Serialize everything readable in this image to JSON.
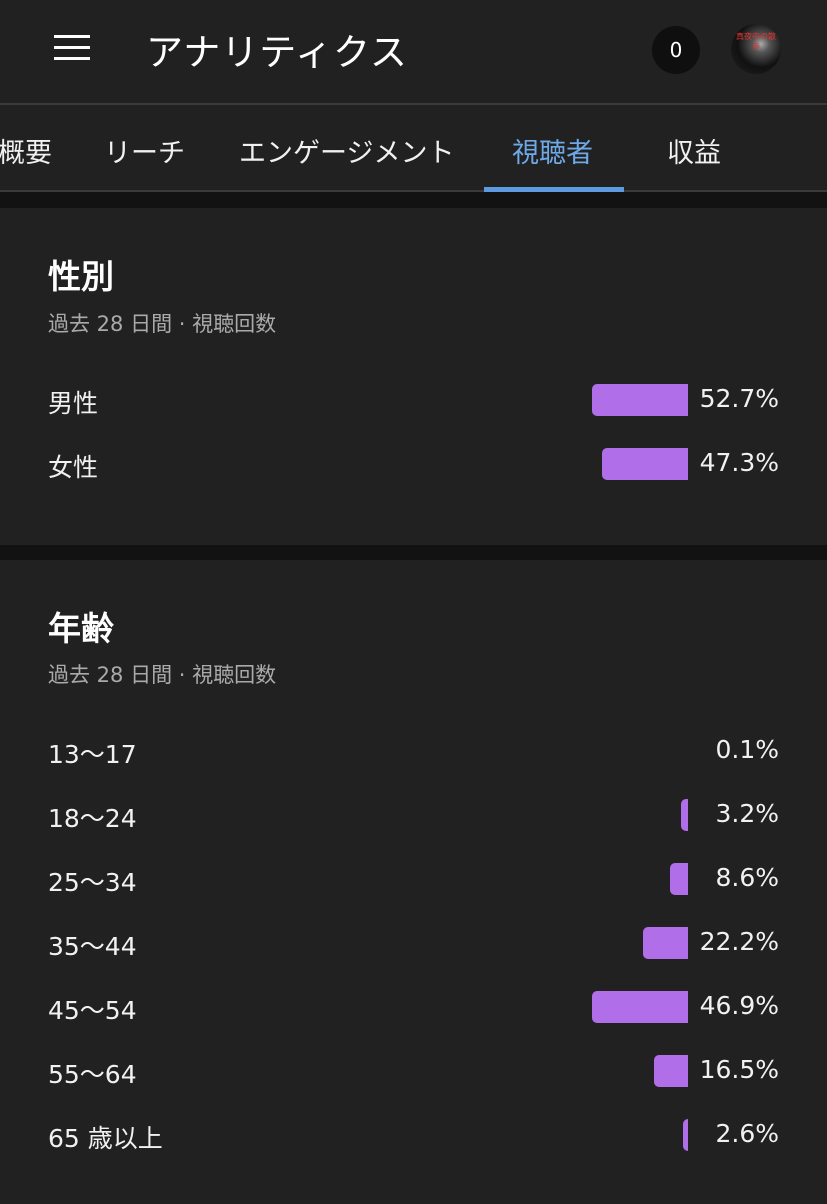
{
  "header": {
    "title": "アナリティクス",
    "notification_count": "0",
    "avatar_text": "真夜中の散歩"
  },
  "tabs": [
    {
      "label": "概要",
      "active": false
    },
    {
      "label": "リーチ",
      "active": false
    },
    {
      "label": "エンゲージメント",
      "active": false
    },
    {
      "label": "視聴者",
      "active": true
    },
    {
      "label": "収益",
      "active": false
    }
  ],
  "bar_color": "#b06ee8",
  "gender": {
    "title": "性別",
    "subtitle": "過去 28 日間 · 視聴回数",
    "rows": [
      {
        "label": "男性",
        "value": 52.7,
        "display": "52.7%"
      },
      {
        "label": "女性",
        "value": 47.3,
        "display": "47.3%"
      }
    ]
  },
  "age": {
    "title": "年齢",
    "subtitle": "過去 28 日間 · 視聴回数",
    "rows": [
      {
        "label": "13〜17",
        "value": 0.1,
        "display": "0.1%"
      },
      {
        "label": "18〜24",
        "value": 3.2,
        "display": "3.2%"
      },
      {
        "label": "25〜34",
        "value": 8.6,
        "display": "8.6%"
      },
      {
        "label": "35〜44",
        "value": 22.2,
        "display": "22.2%"
      },
      {
        "label": "45〜54",
        "value": 46.9,
        "display": "46.9%"
      },
      {
        "label": "55〜64",
        "value": 16.5,
        "display": "16.5%"
      },
      {
        "label": "65 歳以上",
        "value": 2.6,
        "display": "2.6%"
      }
    ]
  }
}
